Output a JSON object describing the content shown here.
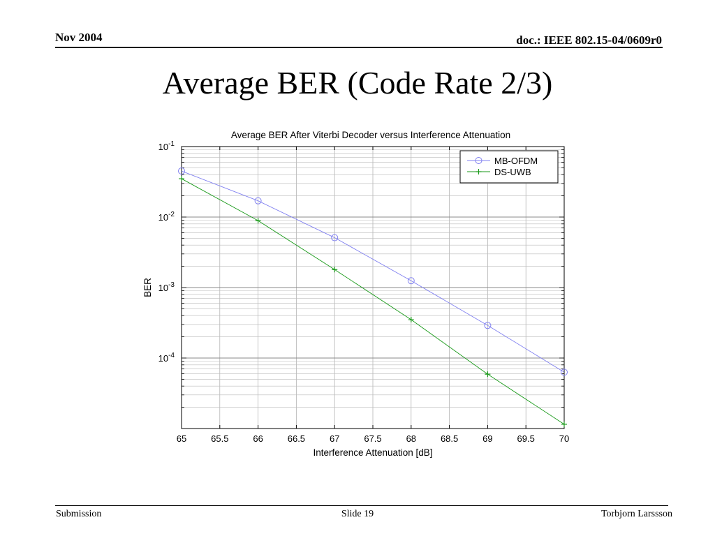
{
  "header": {
    "date": "Nov 2004",
    "doc_id": "doc.: IEEE 802.15-04/0609r0"
  },
  "slide": {
    "title": "Average BER (Code Rate 2/3)"
  },
  "footer": {
    "left": "Submission",
    "center": "Slide 19",
    "right": "Torbjorn Larssson"
  },
  "chart_data": {
    "type": "line",
    "title": "Average BER After Viterbi Decoder versus Interference Attenuation",
    "xlabel": "Interference Attenuation [dB]",
    "ylabel": "BER",
    "xlim": [
      65,
      70
    ],
    "ylim": [
      1e-05,
      0.1
    ],
    "yscale": "log",
    "grid": true,
    "legend_position": "top-right",
    "x_ticks": [
      65,
      65.5,
      66,
      66.5,
      67,
      67.5,
      68,
      68.5,
      69,
      69.5,
      70
    ],
    "x_tick_labels": [
      "65",
      "65.5",
      "66",
      "66.5",
      "67",
      "67.5",
      "68",
      "68.5",
      "69",
      "69.5",
      "70"
    ],
    "y_ticks": [
      0.1,
      0.01,
      0.001,
      0.0001
    ],
    "y_tick_labels": [
      {
        "base": "10",
        "exp": "-1"
      },
      {
        "base": "10",
        "exp": "-2"
      },
      {
        "base": "10",
        "exp": "-3"
      },
      {
        "base": "10",
        "exp": "-4"
      }
    ],
    "x": [
      65,
      66,
      67,
      68,
      69,
      70
    ],
    "series": [
      {
        "name": "MB-OFDM",
        "color": "#8080f0",
        "marker": "circle",
        "values": [
          0.045,
          0.017,
          0.0051,
          0.00125,
          0.00029,
          6.3e-05
        ]
      },
      {
        "name": "DS-UWB",
        "color": "#1a9a1a",
        "marker": "plus",
        "values": [
          0.035,
          0.0089,
          0.0018,
          0.00035,
          5.9e-05,
          1.15e-05
        ]
      }
    ]
  }
}
